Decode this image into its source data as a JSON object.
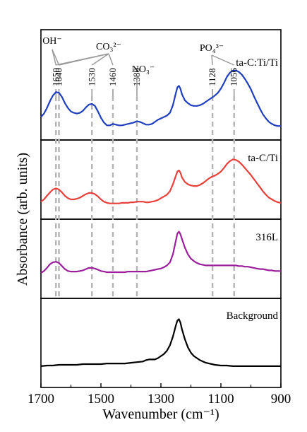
{
  "chart_data": {
    "type": "line",
    "title": "",
    "xlabel": "Wavenumber (cm⁻¹)",
    "ylabel": "Absorbance (arb. units)",
    "xlim": [
      1700,
      900
    ],
    "x_reversed": true,
    "x_ticks": [
      "1700",
      "1500",
      "1300",
      "1100",
      "900"
    ],
    "x_tick_values": [
      1700,
      1500,
      1300,
      1100,
      900
    ],
    "grid": false,
    "y_ticks_shown": false,
    "panels": [
      {
        "name": "ta-C:Ti/Ti",
        "color": "#1f3fbf",
        "points": [
          [
            1700,
            0.25
          ],
          [
            1690,
            0.3
          ],
          [
            1680,
            0.38
          ],
          [
            1670,
            0.48
          ],
          [
            1660,
            0.56
          ],
          [
            1650,
            0.61
          ],
          [
            1640,
            0.6
          ],
          [
            1630,
            0.54
          ],
          [
            1620,
            0.45
          ],
          [
            1610,
            0.38
          ],
          [
            1600,
            0.33
          ],
          [
            1590,
            0.31
          ],
          [
            1580,
            0.3
          ],
          [
            1570,
            0.31
          ],
          [
            1560,
            0.34
          ],
          [
            1550,
            0.39
          ],
          [
            1540,
            0.43
          ],
          [
            1530,
            0.44
          ],
          [
            1520,
            0.41
          ],
          [
            1510,
            0.33
          ],
          [
            1500,
            0.24
          ],
          [
            1490,
            0.17
          ],
          [
            1480,
            0.13
          ],
          [
            1470,
            0.13
          ],
          [
            1460,
            0.15
          ],
          [
            1450,
            0.14
          ],
          [
            1440,
            0.13
          ],
          [
            1430,
            0.13
          ],
          [
            1420,
            0.14
          ],
          [
            1410,
            0.15
          ],
          [
            1400,
            0.16
          ],
          [
            1390,
            0.17
          ],
          [
            1380,
            0.19
          ],
          [
            1370,
            0.18
          ],
          [
            1360,
            0.16
          ],
          [
            1350,
            0.14
          ],
          [
            1340,
            0.14
          ],
          [
            1330,
            0.15
          ],
          [
            1320,
            0.18
          ],
          [
            1310,
            0.21
          ],
          [
            1300,
            0.23
          ],
          [
            1290,
            0.25
          ],
          [
            1280,
            0.27
          ],
          [
            1270,
            0.31
          ],
          [
            1260,
            0.42
          ],
          [
            1250,
            0.6
          ],
          [
            1245,
            0.68
          ],
          [
            1240,
            0.7
          ],
          [
            1235,
            0.66
          ],
          [
            1230,
            0.58
          ],
          [
            1220,
            0.49
          ],
          [
            1210,
            0.45
          ],
          [
            1200,
            0.42
          ],
          [
            1190,
            0.41
          ],
          [
            1180,
            0.41
          ],
          [
            1170,
            0.42
          ],
          [
            1160,
            0.44
          ],
          [
            1150,
            0.47
          ],
          [
            1140,
            0.5
          ],
          [
            1130,
            0.53
          ],
          [
            1120,
            0.56
          ],
          [
            1110,
            0.6
          ],
          [
            1100,
            0.66
          ],
          [
            1090,
            0.74
          ],
          [
            1080,
            0.83
          ],
          [
            1070,
            0.89
          ],
          [
            1060,
            0.92
          ],
          [
            1050,
            0.92
          ],
          [
            1040,
            0.9
          ],
          [
            1030,
            0.86
          ],
          [
            1020,
            0.8
          ],
          [
            1010,
            0.73
          ],
          [
            1000,
            0.65
          ],
          [
            990,
            0.55
          ],
          [
            980,
            0.46
          ],
          [
            970,
            0.37
          ],
          [
            960,
            0.29
          ],
          [
            950,
            0.23
          ],
          [
            940,
            0.18
          ],
          [
            930,
            0.15
          ],
          [
            920,
            0.13
          ],
          [
            910,
            0.12
          ],
          [
            900,
            0.12
          ]
        ]
      },
      {
        "name": "ta-C/Ti",
        "color": "#e8403a",
        "points": [
          [
            1700,
            0.18
          ],
          [
            1690,
            0.22
          ],
          [
            1680,
            0.28
          ],
          [
            1670,
            0.34
          ],
          [
            1660,
            0.39
          ],
          [
            1650,
            0.41
          ],
          [
            1640,
            0.39
          ],
          [
            1630,
            0.34
          ],
          [
            1620,
            0.28
          ],
          [
            1610,
            0.24
          ],
          [
            1600,
            0.22
          ],
          [
            1590,
            0.22
          ],
          [
            1580,
            0.23
          ],
          [
            1570,
            0.25
          ],
          [
            1560,
            0.28
          ],
          [
            1550,
            0.31
          ],
          [
            1540,
            0.33
          ],
          [
            1530,
            0.33
          ],
          [
            1520,
            0.31
          ],
          [
            1510,
            0.27
          ],
          [
            1500,
            0.22
          ],
          [
            1490,
            0.18
          ],
          [
            1480,
            0.16
          ],
          [
            1470,
            0.15
          ],
          [
            1460,
            0.15
          ],
          [
            1450,
            0.15
          ],
          [
            1440,
            0.15
          ],
          [
            1430,
            0.16
          ],
          [
            1420,
            0.16
          ],
          [
            1410,
            0.16
          ],
          [
            1400,
            0.17
          ],
          [
            1390,
            0.17
          ],
          [
            1380,
            0.18
          ],
          [
            1370,
            0.18
          ],
          [
            1360,
            0.18
          ],
          [
            1350,
            0.17
          ],
          [
            1340,
            0.17
          ],
          [
            1330,
            0.18
          ],
          [
            1320,
            0.19
          ],
          [
            1310,
            0.21
          ],
          [
            1300,
            0.24
          ],
          [
            1290,
            0.27
          ],
          [
            1280,
            0.3
          ],
          [
            1270,
            0.36
          ],
          [
            1260,
            0.48
          ],
          [
            1250,
            0.63
          ],
          [
            1245,
            0.7
          ],
          [
            1240,
            0.72
          ],
          [
            1235,
            0.68
          ],
          [
            1230,
            0.6
          ],
          [
            1220,
            0.52
          ],
          [
            1210,
            0.48
          ],
          [
            1200,
            0.46
          ],
          [
            1190,
            0.45
          ],
          [
            1180,
            0.45
          ],
          [
            1170,
            0.47
          ],
          [
            1160,
            0.5
          ],
          [
            1150,
            0.54
          ],
          [
            1140,
            0.58
          ],
          [
            1130,
            0.61
          ],
          [
            1120,
            0.63
          ],
          [
            1110,
            0.66
          ],
          [
            1100,
            0.7
          ],
          [
            1090,
            0.76
          ],
          [
            1080,
            0.83
          ],
          [
            1070,
            0.88
          ],
          [
            1060,
            0.91
          ],
          [
            1050,
            0.9
          ],
          [
            1040,
            0.87
          ],
          [
            1030,
            0.82
          ],
          [
            1020,
            0.76
          ],
          [
            1010,
            0.7
          ],
          [
            1000,
            0.64
          ],
          [
            990,
            0.57
          ],
          [
            980,
            0.5
          ],
          [
            970,
            0.43
          ],
          [
            960,
            0.36
          ],
          [
            950,
            0.3
          ],
          [
            940,
            0.25
          ],
          [
            930,
            0.22
          ],
          [
            920,
            0.19
          ],
          [
            910,
            0.17
          ],
          [
            900,
            0.16
          ]
        ]
      },
      {
        "name": "316L",
        "color": "#9b1f9b",
        "points": [
          [
            1700,
            0.22
          ],
          [
            1690,
            0.25
          ],
          [
            1680,
            0.3
          ],
          [
            1670,
            0.36
          ],
          [
            1660,
            0.39
          ],
          [
            1650,
            0.4
          ],
          [
            1640,
            0.38
          ],
          [
            1630,
            0.33
          ],
          [
            1620,
            0.28
          ],
          [
            1610,
            0.25
          ],
          [
            1600,
            0.24
          ],
          [
            1590,
            0.24
          ],
          [
            1580,
            0.24
          ],
          [
            1570,
            0.25
          ],
          [
            1560,
            0.26
          ],
          [
            1550,
            0.28
          ],
          [
            1540,
            0.3
          ],
          [
            1530,
            0.3
          ],
          [
            1520,
            0.29
          ],
          [
            1510,
            0.27
          ],
          [
            1500,
            0.25
          ],
          [
            1490,
            0.24
          ],
          [
            1480,
            0.23
          ],
          [
            1470,
            0.23
          ],
          [
            1460,
            0.23
          ],
          [
            1450,
            0.23
          ],
          [
            1440,
            0.23
          ],
          [
            1430,
            0.23
          ],
          [
            1420,
            0.23
          ],
          [
            1410,
            0.24
          ],
          [
            1400,
            0.24
          ],
          [
            1390,
            0.24
          ],
          [
            1380,
            0.24
          ],
          [
            1370,
            0.24
          ],
          [
            1360,
            0.24
          ],
          [
            1350,
            0.24
          ],
          [
            1340,
            0.25
          ],
          [
            1330,
            0.26
          ],
          [
            1320,
            0.27
          ],
          [
            1310,
            0.28
          ],
          [
            1300,
            0.29
          ],
          [
            1290,
            0.31
          ],
          [
            1280,
            0.34
          ],
          [
            1270,
            0.39
          ],
          [
            1260,
            0.52
          ],
          [
            1250,
            0.75
          ],
          [
            1245,
            0.86
          ],
          [
            1240,
            0.89
          ],
          [
            1235,
            0.85
          ],
          [
            1230,
            0.77
          ],
          [
            1220,
            0.63
          ],
          [
            1210,
            0.52
          ],
          [
            1200,
            0.45
          ],
          [
            1190,
            0.41
          ],
          [
            1180,
            0.38
          ],
          [
            1170,
            0.36
          ],
          [
            1160,
            0.35
          ],
          [
            1150,
            0.34
          ],
          [
            1140,
            0.34
          ],
          [
            1130,
            0.34
          ],
          [
            1120,
            0.34
          ],
          [
            1110,
            0.34
          ],
          [
            1100,
            0.34
          ],
          [
            1090,
            0.34
          ],
          [
            1080,
            0.34
          ],
          [
            1070,
            0.34
          ],
          [
            1060,
            0.34
          ],
          [
            1050,
            0.34
          ],
          [
            1040,
            0.33
          ],
          [
            1030,
            0.33
          ],
          [
            1020,
            0.32
          ],
          [
            1010,
            0.32
          ],
          [
            1000,
            0.31
          ],
          [
            990,
            0.3
          ],
          [
            980,
            0.29
          ],
          [
            970,
            0.28
          ],
          [
            960,
            0.28
          ],
          [
            950,
            0.27
          ],
          [
            940,
            0.26
          ],
          [
            930,
            0.26
          ],
          [
            920,
            0.25
          ],
          [
            910,
            0.25
          ],
          [
            900,
            0.25
          ]
        ]
      },
      {
        "name": "Background",
        "color": "#000000",
        "points": [
          [
            1700,
            0.18
          ],
          [
            1680,
            0.19
          ],
          [
            1660,
            0.19
          ],
          [
            1640,
            0.2
          ],
          [
            1620,
            0.2
          ],
          [
            1600,
            0.2
          ],
          [
            1580,
            0.2
          ],
          [
            1560,
            0.21
          ],
          [
            1540,
            0.21
          ],
          [
            1520,
            0.21
          ],
          [
            1500,
            0.21
          ],
          [
            1480,
            0.22
          ],
          [
            1460,
            0.22
          ],
          [
            1440,
            0.22
          ],
          [
            1420,
            0.22
          ],
          [
            1400,
            0.23
          ],
          [
            1380,
            0.24
          ],
          [
            1360,
            0.25
          ],
          [
            1350,
            0.27
          ],
          [
            1340,
            0.28
          ],
          [
            1330,
            0.28
          ],
          [
            1320,
            0.28
          ],
          [
            1310,
            0.3
          ],
          [
            1300,
            0.33
          ],
          [
            1290,
            0.36
          ],
          [
            1280,
            0.41
          ],
          [
            1270,
            0.49
          ],
          [
            1260,
            0.62
          ],
          [
            1250,
            0.79
          ],
          [
            1245,
            0.86
          ],
          [
            1240,
            0.88
          ],
          [
            1235,
            0.83
          ],
          [
            1230,
            0.73
          ],
          [
            1220,
            0.58
          ],
          [
            1210,
            0.46
          ],
          [
            1200,
            0.38
          ],
          [
            1190,
            0.33
          ],
          [
            1180,
            0.3
          ],
          [
            1170,
            0.27
          ],
          [
            1160,
            0.25
          ],
          [
            1150,
            0.23
          ],
          [
            1140,
            0.22
          ],
          [
            1130,
            0.21
          ],
          [
            1120,
            0.2
          ],
          [
            1100,
            0.19
          ],
          [
            1080,
            0.19
          ],
          [
            1060,
            0.18
          ],
          [
            1040,
            0.18
          ],
          [
            1020,
            0.18
          ],
          [
            1000,
            0.18
          ],
          [
            980,
            0.18
          ],
          [
            960,
            0.18
          ],
          [
            940,
            0.18
          ],
          [
            920,
            0.18
          ],
          [
            900,
            0.18
          ]
        ]
      }
    ],
    "peak_lines": [
      {
        "x": 1650,
        "label": "1650"
      },
      {
        "x": 1640,
        "label": "1640"
      },
      {
        "x": 1530,
        "label": "1530"
      },
      {
        "x": 1460,
        "label": "1460"
      },
      {
        "x": 1380,
        "label": "1380"
      },
      {
        "x": 1128,
        "label": "1128"
      },
      {
        "x": 1056,
        "label": "1056"
      }
    ],
    "group_labels": [
      {
        "label": "OH⁻",
        "peaks": [
          1650,
          1640
        ]
      },
      {
        "label": "CO₃²⁻",
        "peaks": [
          1650,
          1640,
          1530,
          1460
        ]
      },
      {
        "label": "NO₃⁻",
        "peaks": [
          1380
        ]
      },
      {
        "label": "PO₄³⁻",
        "peaks": [
          1128,
          1056
        ]
      }
    ]
  }
}
